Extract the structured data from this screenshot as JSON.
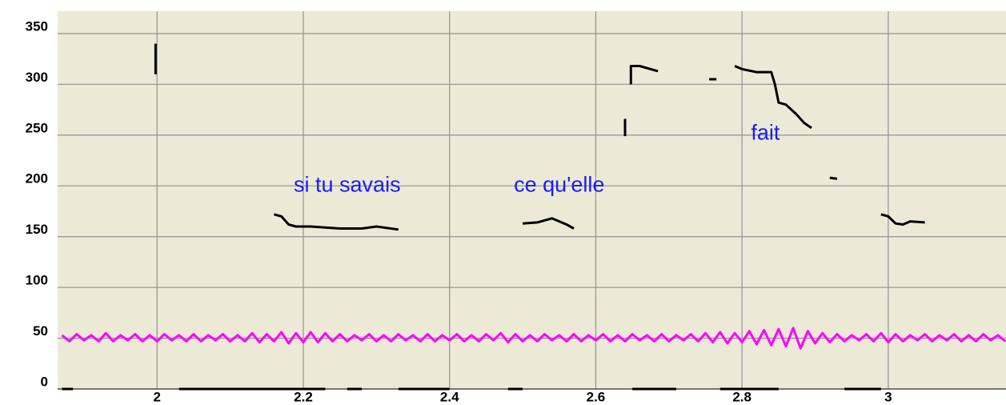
{
  "chart_data": {
    "type": "line",
    "xlim": [
      1.864,
      3.161
    ],
    "ylim": [
      0,
      372
    ],
    "xticks": [
      2,
      2.2,
      2.4,
      2.6,
      2.8,
      3
    ],
    "yticks": [
      0,
      50,
      100,
      150,
      200,
      250,
      300,
      350
    ],
    "grid": true,
    "annotations": [
      {
        "text": "si tu savais",
        "x": 2.26,
        "y": 200
      },
      {
        "text": "ce qu'elle",
        "x": 2.55,
        "y": 200
      },
      {
        "text": "fait",
        "x": 2.832,
        "y": 251
      }
    ],
    "series": [
      {
        "color": "#ff00ff",
        "x": [
          1.87,
          1.88,
          1.89,
          1.9,
          1.91,
          1.92,
          1.93,
          1.94,
          1.95,
          1.96,
          1.97,
          1.98,
          1.99,
          2,
          2.01,
          2.02,
          2.03,
          2.04,
          2.05,
          2.06,
          2.07,
          2.08,
          2.09,
          2.1,
          2.11,
          2.12,
          2.13,
          2.14,
          2.15,
          2.16,
          2.17,
          2.18,
          2.19,
          2.2,
          2.21,
          2.22,
          2.23,
          2.24,
          2.25,
          2.26,
          2.27,
          2.28,
          2.29,
          2.3,
          2.31,
          2.32,
          2.33,
          2.34,
          2.35,
          2.36,
          2.37,
          2.38,
          2.39,
          2.4,
          2.41,
          2.42,
          2.43,
          2.44,
          2.45,
          2.46,
          2.47,
          2.48,
          2.49,
          2.5,
          2.51,
          2.52,
          2.53,
          2.54,
          2.55,
          2.56,
          2.57,
          2.58,
          2.59,
          2.6,
          2.61,
          2.62,
          2.63,
          2.64,
          2.65,
          2.66,
          2.67,
          2.68,
          2.69,
          2.7,
          2.71,
          2.72,
          2.73,
          2.74,
          2.75,
          2.76,
          2.77,
          2.78,
          2.79,
          2.8,
          2.81,
          2.82,
          2.83,
          2.84,
          2.85,
          2.86,
          2.87,
          2.88,
          2.89,
          2.9,
          2.91,
          2.92,
          2.93,
          2.94,
          2.95,
          2.96,
          2.97,
          2.98,
          2.99,
          3,
          3.01,
          3.02,
          3.03,
          3.04,
          3.05,
          3.06,
          3.07,
          3.08,
          3.09,
          3.1,
          3.11,
          3.12,
          3.13,
          3.14,
          3.15,
          3.16
        ],
        "values": [
          53,
          47,
          54,
          48,
          53,
          47,
          55,
          47,
          53,
          48,
          54,
          47,
          53,
          47,
          54,
          48,
          53,
          47,
          54,
          47,
          53,
          48,
          54,
          47,
          53,
          47,
          55,
          46,
          54,
          47,
          56,
          45,
          55,
          46,
          56,
          46,
          55,
          47,
          54,
          47,
          53,
          48,
          54,
          47,
          53,
          47,
          54,
          48,
          53,
          47,
          54,
          47,
          53,
          48,
          54,
          47,
          53,
          47,
          54,
          48,
          55,
          46,
          54,
          47,
          53,
          47,
          54,
          48,
          53,
          47,
          54,
          47,
          53,
          48,
          54,
          47,
          53,
          47,
          54,
          48,
          53,
          47,
          54,
          47,
          53,
          48,
          54,
          47,
          55,
          46,
          56,
          45,
          55,
          46,
          57,
          44,
          58,
          43,
          59,
          42,
          60,
          40,
          57,
          45,
          55,
          46,
          54,
          47,
          53,
          48,
          54,
          47,
          55,
          46,
          54,
          47,
          53,
          48,
          54,
          47,
          53,
          48,
          54,
          47,
          53,
          47,
          54,
          48,
          53,
          47
        ]
      },
      {
        "color": "#000000",
        "x": [
          1.998,
          1.998,
          null,
          2.16,
          2.17,
          2.18,
          2.19,
          2.21,
          2.23,
          2.25,
          2.28,
          2.3,
          2.33,
          null,
          2.5,
          2.52,
          2.54,
          2.56,
          2.57,
          null,
          2.64,
          2.64,
          null,
          2.648,
          2.648,
          2.66,
          2.685,
          null,
          2.755,
          2.765,
          null,
          2.79,
          2.8,
          2.82,
          2.84,
          2.845,
          2.85,
          2.86,
          2.875,
          2.885,
          2.895,
          null,
          2.92,
          2.93,
          null,
          2.99,
          3.0,
          3.01,
          3.02,
          3.03,
          3.05
        ],
        "values": [
          340,
          310,
          null,
          172,
          170,
          162,
          160,
          160,
          159,
          158,
          158,
          160,
          157,
          null,
          163,
          164,
          168,
          162,
          158,
          null,
          266,
          249,
          null,
          300,
          318,
          318,
          313,
          null,
          305,
          305,
          null,
          318,
          315,
          312,
          312,
          300,
          282,
          280,
          270,
          262,
          257,
          null,
          208,
          207,
          null,
          172,
          170,
          163,
          162,
          165,
          164
        ]
      },
      {
        "color": "#000000",
        "x": [
          1.87,
          1.885,
          null,
          2.03,
          2.23,
          null,
          2.26,
          2.28,
          null,
          2.33,
          2.4,
          null,
          2.48,
          2.5,
          null,
          2.65,
          2.71,
          null,
          2.77,
          2.85,
          null,
          2.94,
          2.99
        ],
        "values": [
          0,
          0,
          null,
          0,
          0,
          null,
          0,
          0,
          null,
          0,
          0,
          null,
          0,
          0,
          null,
          0,
          0,
          null,
          0,
          0,
          null,
          0,
          0
        ]
      }
    ]
  }
}
